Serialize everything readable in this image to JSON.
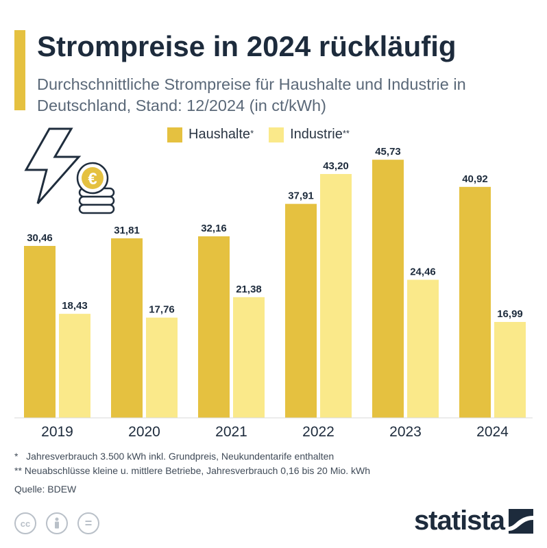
{
  "header": {
    "title": "Strompreise in 2024 rückläufig",
    "subtitle": "Durchschnittliche Strompreise für Haushalte und Industrie in Deutschland, Stand: 12/2024 (in ct/kWh)"
  },
  "legend": [
    {
      "label": "Haushalte",
      "marker": "*",
      "color": "#e5c140"
    },
    {
      "label": "Industrie",
      "marker": "**",
      "color": "#fae98a"
    }
  ],
  "chart_data": {
    "type": "bar",
    "categories": [
      "2019",
      "2020",
      "2021",
      "2022",
      "2023",
      "2024"
    ],
    "series": [
      {
        "name": "Haushalte*",
        "values": [
          30.46,
          31.81,
          32.16,
          37.91,
          45.73,
          40.92
        ],
        "labels": [
          "30,46",
          "31,81",
          "32,16",
          "37,91",
          "45,73",
          "40,92"
        ],
        "color": "#e5c140"
      },
      {
        "name": "Industrie**",
        "values": [
          18.43,
          17.76,
          21.38,
          43.2,
          24.46,
          16.99
        ],
        "labels": [
          "18,43",
          "17,76",
          "21,38",
          "43,20",
          "24,46",
          "16,99"
        ],
        "color": "#fae98a"
      }
    ],
    "title": "Strompreise in 2024 rückläufig",
    "xlabel": "",
    "ylabel": "",
    "ylim": [
      0,
      50
    ],
    "grid": false,
    "legend_position": "top"
  },
  "footnotes": {
    "note1": "*   Jahresverbrauch 3.500 kWh inkl. Grundpreis, Neukundentarife enthalten",
    "note2": "** Neuabschlüsse kleine u. mittlere Betriebe, Jahresverbrauch 0,16 bis 20 Mio. kWh",
    "source": "Quelle: BDEW"
  },
  "icons": [
    "lightning-icon",
    "euro-coins-icon",
    "cc-icon",
    "by-icon",
    "nd-icon",
    "statista-logo-icon"
  ],
  "cc_labels": {
    "cc": "cc",
    "nd": "="
  },
  "logo_text": "statista"
}
